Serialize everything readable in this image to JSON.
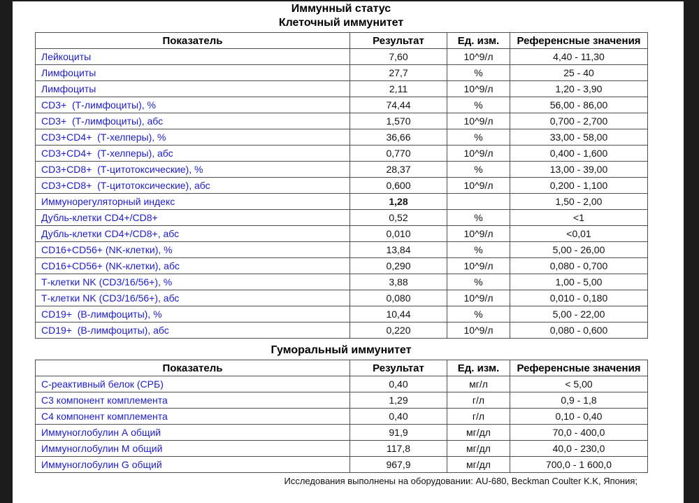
{
  "page": {
    "title": "Иммунный статус",
    "footer": "Исследования выполнены на оборудовании: AU-680, Beckman Coulter K.K, Япония;"
  },
  "colors": {
    "label_blue": "#1c1ccd",
    "value_black": "#111111",
    "border_gray": "#4d4d4d",
    "letterbox_dark": "#1c1c1c",
    "page_white": "#ffffff"
  },
  "tables": [
    {
      "subtitle": "Клеточный иммунитет",
      "headers": [
        "Показатель",
        "Результат",
        "Ед. изм.",
        "Референсные значения"
      ],
      "rows": [
        {
          "name": "Лейкоциты",
          "result": "7,60",
          "unit": "10^9/л",
          "ref": "4,40 - 11,30",
          "bold": false
        },
        {
          "name": "Лимфоциты",
          "result": "27,7",
          "unit": "%",
          "ref": "25 - 40",
          "bold": false
        },
        {
          "name": "Лимфоциты",
          "result": "2,11",
          "unit": "10^9/л",
          "ref": "1,20 - 3,90",
          "bold": false
        },
        {
          "name": "CD3+  (Т-лимфоциты), %",
          "result": "74,44",
          "unit": "%",
          "ref": "56,00 - 86,00",
          "bold": false
        },
        {
          "name": "CD3+  (Т-лимфоциты), абс",
          "result": "1,570",
          "unit": "10^9/л",
          "ref": "0,700 - 2,700",
          "bold": false
        },
        {
          "name": "CD3+CD4+  (Т-хелперы), %",
          "result": "36,66",
          "unit": "%",
          "ref": "33,00 - 58,00",
          "bold": false
        },
        {
          "name": "CD3+CD4+  (Т-хелперы), абс",
          "result": "0,770",
          "unit": "10^9/л",
          "ref": "0,400 - 1,600",
          "bold": false
        },
        {
          "name": "CD3+CD8+  (Т-цитотоксические), %",
          "result": "28,37",
          "unit": "%",
          "ref": "13,00 - 39,00",
          "bold": false
        },
        {
          "name": "CD3+CD8+  (Т-цитотоксические), абс",
          "result": "0,600",
          "unit": "10^9/л",
          "ref": "0,200 - 1,100",
          "bold": false
        },
        {
          "name": "Иммунорегуляторный индекс",
          "result": "1,28",
          "unit": "",
          "ref": "1,50 - 2,00",
          "bold": true
        },
        {
          "name": "Дубль-клетки CD4+/CD8+",
          "result": "0,52",
          "unit": "%",
          "ref": "<1",
          "bold": false
        },
        {
          "name": "Дубль-клетки CD4+/CD8+, абс",
          "result": "0,010",
          "unit": "10^9/л",
          "ref": "<0,01",
          "bold": false
        },
        {
          "name": "CD16+CD56+ (NK-клетки), %",
          "result": "13,84",
          "unit": "%",
          "ref": "5,00 - 26,00",
          "bold": false
        },
        {
          "name": "CD16+CD56+ (NK-клетки), абс",
          "result": "0,290",
          "unit": "10^9/л",
          "ref": "0,080 - 0,700",
          "bold": false
        },
        {
          "name": "Т-клетки NK (CD3/16/56+), %",
          "result": "3,88",
          "unit": "%",
          "ref": "1,00 - 5,00",
          "bold": false
        },
        {
          "name": "Т-клетки NK (CD3/16/56+), абс",
          "result": "0,080",
          "unit": "10^9/л",
          "ref": "0,010 - 0,180",
          "bold": false
        },
        {
          "name": "CD19+  (В-лимфоциты), %",
          "result": "10,44",
          "unit": "%",
          "ref": "5,00 - 22,00",
          "bold": false
        },
        {
          "name": "CD19+  (В-лимфоциты), абс",
          "result": "0,220",
          "unit": "10^9/л",
          "ref": "0,080 - 0,600",
          "bold": false
        }
      ]
    },
    {
      "subtitle": "Гуморальный иммунитет",
      "headers": [
        "Показатель",
        "Результат",
        "Ед. изм.",
        "Референсные значения"
      ],
      "rows": [
        {
          "name": "С-реактивный белок (СРБ)",
          "result": "0,40",
          "unit": "мг/л",
          "ref": "< 5,00",
          "bold": false
        },
        {
          "name": "С3 компонент комплемента",
          "result": "1,29",
          "unit": "г/л",
          "ref": "0,9 - 1,8",
          "bold": false
        },
        {
          "name": "С4 компонент комплемента",
          "result": "0,40",
          "unit": "г/л",
          "ref": "0,10 - 0,40",
          "bold": false
        },
        {
          "name": "Иммуноглобулин А общий",
          "result": "91,9",
          "unit": "мг/дл",
          "ref": "70,0 - 400,0",
          "bold": false
        },
        {
          "name": "Иммуноглобулин М общий",
          "result": "117,8",
          "unit": "мг/дл",
          "ref": "40,0 - 230,0",
          "bold": false
        },
        {
          "name": "Иммуноглобулин G общий",
          "result": "967,9",
          "unit": "мг/дл",
          "ref": "700,0 - 1 600,0",
          "bold": false
        }
      ]
    }
  ]
}
